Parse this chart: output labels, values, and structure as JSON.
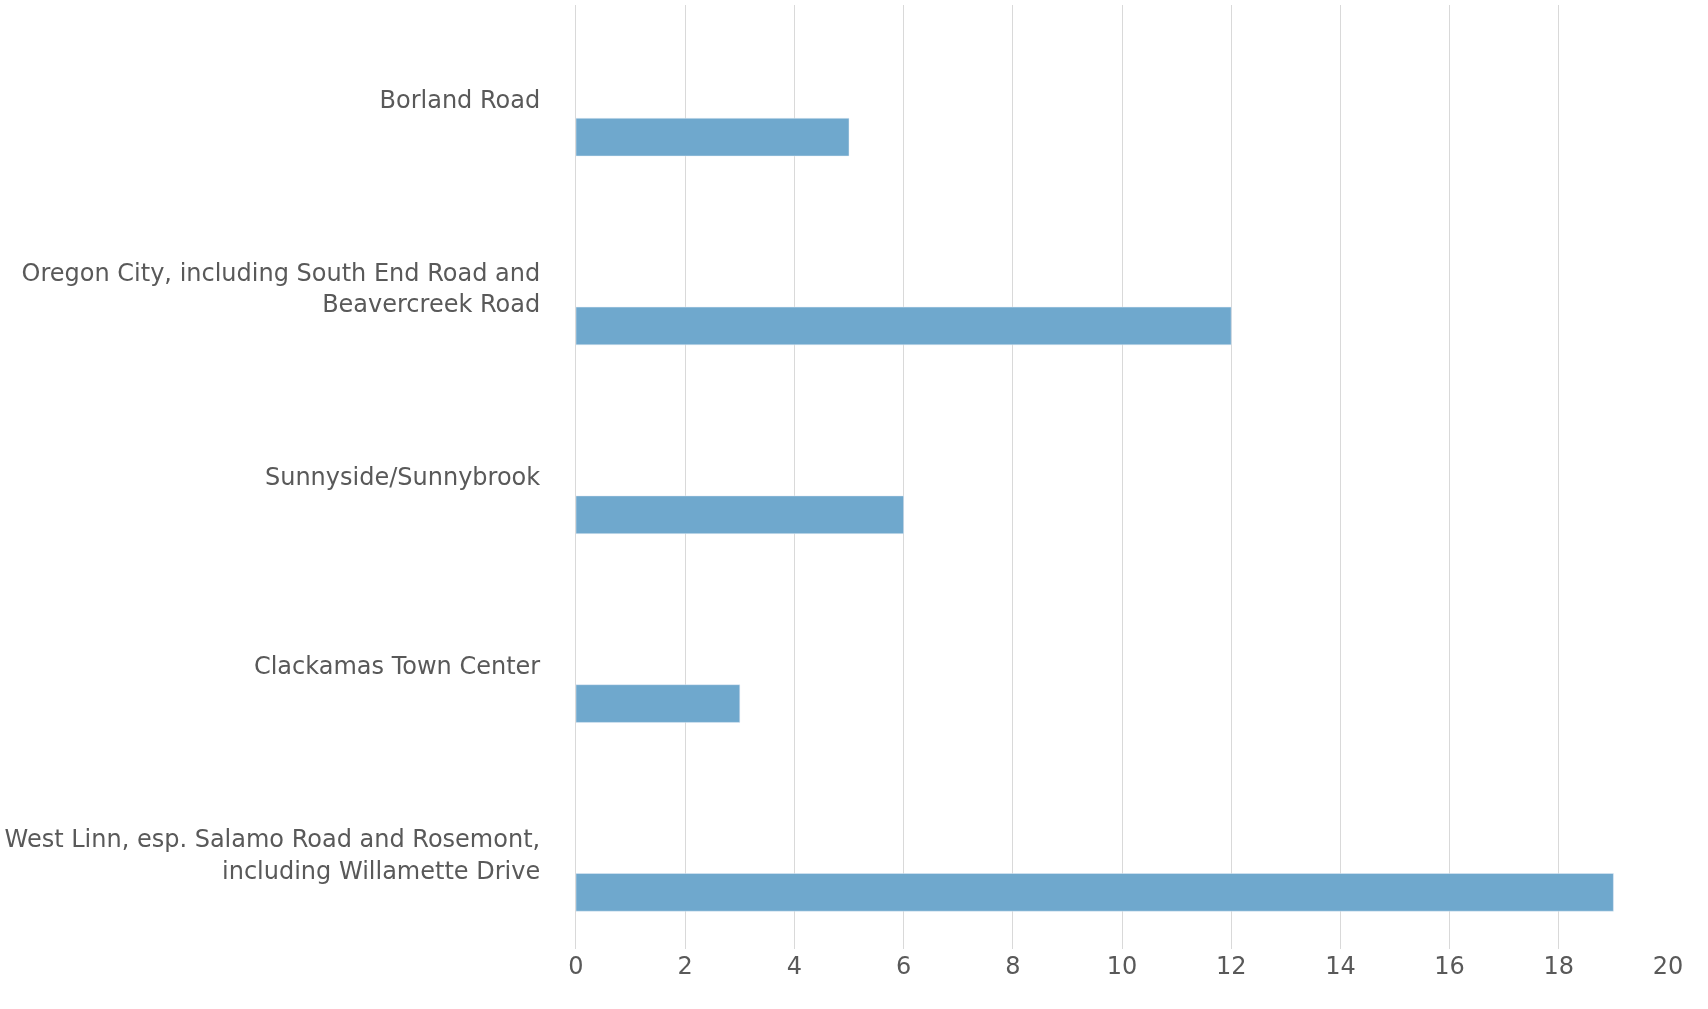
{
  "chart_data": {
    "type": "bar",
    "orientation": "horizontal",
    "categories": [
      "Borland Road",
      "Oregon City, including South End Road and Beavercreek Road",
      "Sunnyside/Sunnybrook",
      "Clackamas Town Center",
      "West Linn, esp. Salamo Road and Rosemont, including Willamette Drive"
    ],
    "values": [
      5,
      12,
      6,
      3,
      19
    ],
    "color": "#6fa8cd",
    "xlim": [
      0,
      20
    ],
    "xticks": [
      0,
      2,
      4,
      6,
      8,
      10,
      12,
      14,
      16,
      18,
      20
    ],
    "grid": "x",
    "legend": false
  }
}
